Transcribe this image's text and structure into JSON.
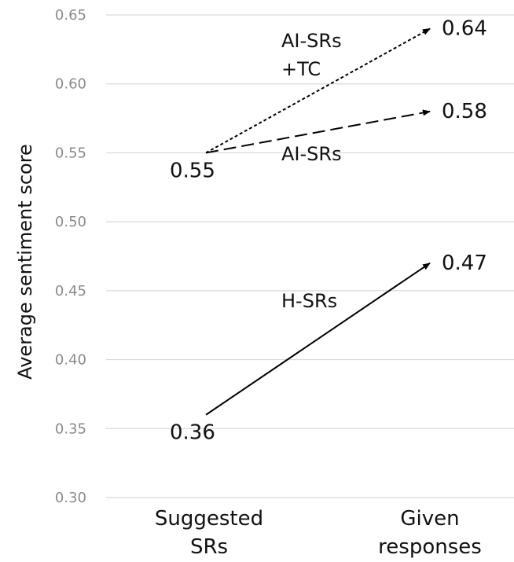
{
  "chart_data": {
    "type": "line",
    "ylabel": "Average sentiment score",
    "ylim": [
      0.3,
      0.65
    ],
    "yticks": [
      "0.30",
      "0.35",
      "0.40",
      "0.45",
      "0.50",
      "0.55",
      "0.60",
      "0.65"
    ],
    "grid": true,
    "categories": [
      "Suggested\nSRs",
      "Given\nresponses"
    ],
    "category_lines": [
      [
        "Suggested",
        "SRs"
      ],
      [
        "Given",
        "responses"
      ]
    ],
    "series": [
      {
        "name": "AI-SRs\n+TC",
        "name_lines": [
          "AI-SRs",
          "+TC"
        ],
        "values": [
          0.55,
          0.64
        ],
        "labels": [
          "",
          "0.64"
        ],
        "dash": "dotted"
      },
      {
        "name": "AI-SRs",
        "name_lines": [
          "AI-SRs"
        ],
        "values": [
          0.55,
          0.58
        ],
        "labels": [
          "0.55",
          "0.58"
        ],
        "dash": "dashed"
      },
      {
        "name": "H-SRs",
        "name_lines": [
          "H-SRs"
        ],
        "values": [
          0.36,
          0.47
        ],
        "labels": [
          "0.36",
          "0.47"
        ],
        "dash": "solid"
      }
    ],
    "colors": {
      "line": "#000000",
      "grid": "#d9d9d9",
      "tick": "#8a8a8a"
    }
  }
}
